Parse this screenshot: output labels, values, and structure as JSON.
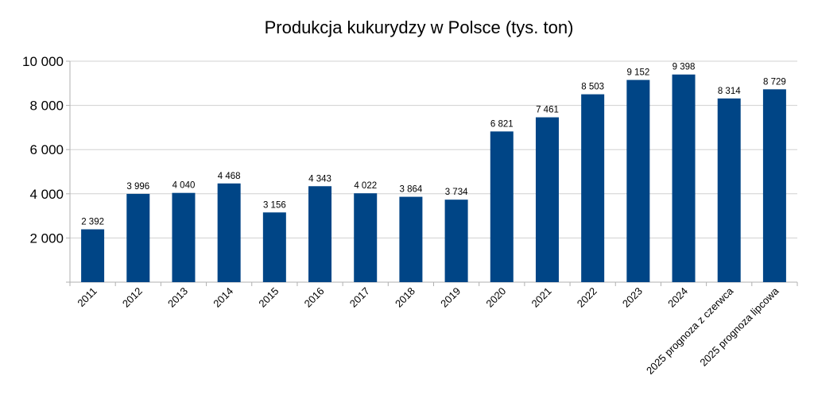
{
  "chart_data": {
    "type": "bar",
    "title": "Produkcja kukurydzy w Polsce (tys. ton)",
    "xlabel": "",
    "ylabel": "",
    "categories": [
      "2011",
      "2012",
      "2013",
      "2014",
      "2015",
      "2016",
      "2017",
      "2018",
      "2019",
      "2020",
      "2021",
      "2022",
      "2023",
      "2024",
      "2025 prognoza z czerwca",
      "2025 prognoza lipcowa"
    ],
    "values": [
      2392,
      3996,
      4040,
      4468,
      3156,
      4343,
      4022,
      3864,
      3734,
      6821,
      7461,
      8503,
      9152,
      9398,
      8314,
      8729
    ],
    "value_labels": [
      "2 392",
      "3 996",
      "4 040",
      "4 468",
      "3 156",
      "4 343",
      "4 022",
      "3 864",
      "3 734",
      "6 821",
      "7 461",
      "8 503",
      "9 152",
      "9 398",
      "8 314",
      "8 729"
    ],
    "ylim": [
      0,
      10000
    ],
    "yticks": [
      2000,
      4000,
      6000,
      8000,
      10000
    ],
    "ytick_labels": [
      "2 000",
      "4 000",
      "6 000",
      "8 000",
      "10 000"
    ],
    "grid": true,
    "legend": "none",
    "bar_color": "#004586"
  }
}
